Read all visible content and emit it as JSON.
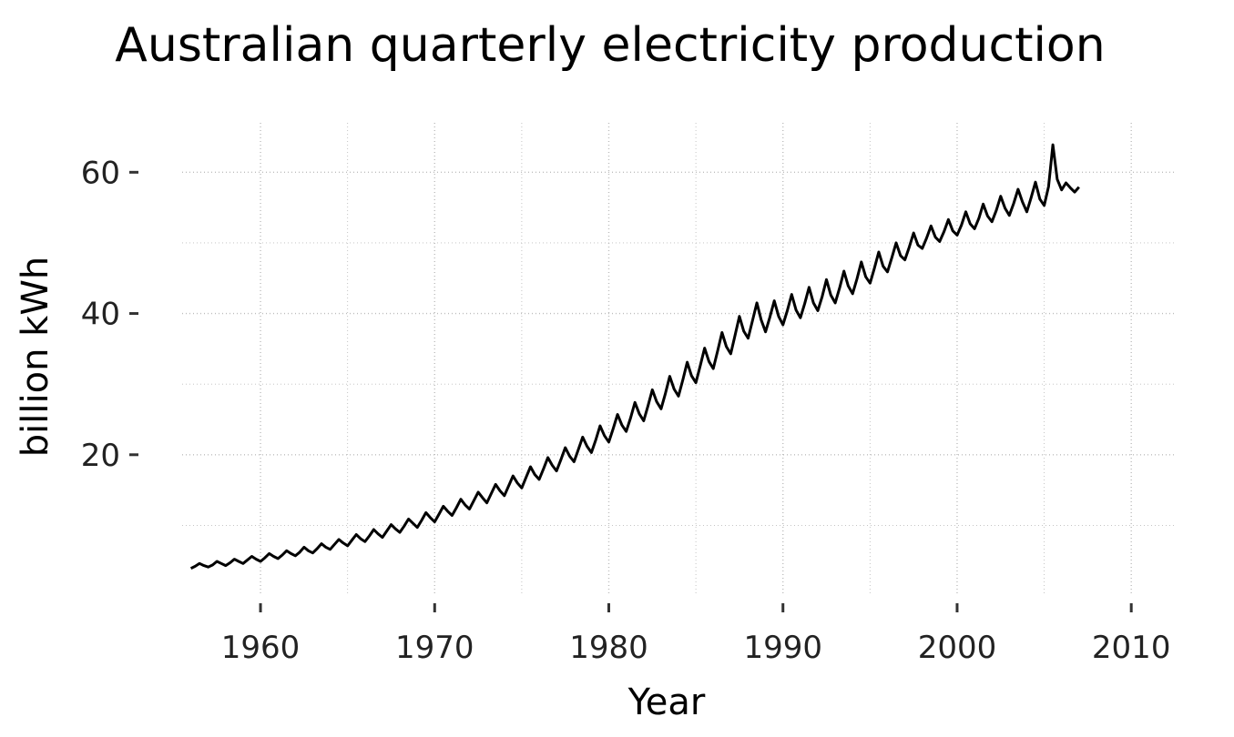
{
  "chart_data": {
    "type": "line",
    "title": "Australian quarterly electricity production",
    "xlabel": "Year",
    "ylabel": "billion kWh",
    "xlim": [
      1955.5,
      2012.5
    ],
    "ylim": [
      0,
      67
    ],
    "x_ticks": [
      1960,
      1970,
      1980,
      1990,
      2000,
      2010
    ],
    "x_tick_labels": [
      "1960",
      "1970",
      "1980",
      "1990",
      "2000",
      "2010"
    ],
    "y_ticks": [
      20,
      40,
      60
    ],
    "y_tick_labels": [
      "20",
      "40",
      "60"
    ],
    "grid": true,
    "legend": "none",
    "x_start": 1956.0,
    "x_step": 0.25,
    "series": [
      {
        "values": [
          3.9,
          4.2,
          4.6,
          4.3,
          4.1,
          4.4,
          4.9,
          4.6,
          4.3,
          4.7,
          5.2,
          4.9,
          4.6,
          5.1,
          5.6,
          5.2,
          4.9,
          5.4,
          6.0,
          5.6,
          5.3,
          5.8,
          6.4,
          6.0,
          5.7,
          6.2,
          6.9,
          6.4,
          6.1,
          6.7,
          7.4,
          6.9,
          6.6,
          7.3,
          8.0,
          7.5,
          7.1,
          7.9,
          8.7,
          8.1,
          7.7,
          8.5,
          9.4,
          8.8,
          8.3,
          9.2,
          10.1,
          9.5,
          9.0,
          9.9,
          10.9,
          10.3,
          9.7,
          10.7,
          11.8,
          11.1,
          10.5,
          11.6,
          12.7,
          12.0,
          11.4,
          12.5,
          13.7,
          12.9,
          12.3,
          13.5,
          14.7,
          13.9,
          13.2,
          14.5,
          15.8,
          14.9,
          14.2,
          15.6,
          17.0,
          16.0,
          15.3,
          16.8,
          18.3,
          17.2,
          16.5,
          18.0,
          19.6,
          18.5,
          17.7,
          19.3,
          21.0,
          19.8,
          19.0,
          20.7,
          22.5,
          21.2,
          20.3,
          22.1,
          24.1,
          22.7,
          21.8,
          23.7,
          25.7,
          24.2,
          23.3,
          25.2,
          27.4,
          25.8,
          24.8,
          26.9,
          29.2,
          27.5,
          26.5,
          28.7,
          31.1,
          29.3,
          28.3,
          30.6,
          33.1,
          31.2,
          30.2,
          32.6,
          35.1,
          33.2,
          32.2,
          34.7,
          37.3,
          35.3,
          34.3,
          36.9,
          39.6,
          37.5,
          36.5,
          39.0,
          41.5,
          39.1,
          37.4,
          39.5,
          41.8,
          39.6,
          38.4,
          40.4,
          42.7,
          40.5,
          39.4,
          41.4,
          43.7,
          41.5,
          40.4,
          42.4,
          44.8,
          42.6,
          41.5,
          43.6,
          46.0,
          43.9,
          42.8,
          44.9,
          47.3,
          45.2,
          44.3,
          46.4,
          48.7,
          46.7,
          45.9,
          47.9,
          50.0,
          48.2,
          47.6,
          49.4,
          51.4,
          49.7,
          49.2,
          50.7,
          52.4,
          50.8,
          50.2,
          51.6,
          53.3,
          51.7,
          51.1,
          52.5,
          54.4,
          52.7,
          52.0,
          53.5,
          55.5,
          53.8,
          53.0,
          54.6,
          56.6,
          54.9,
          53.9,
          55.6,
          57.6,
          55.8,
          54.4,
          56.4,
          58.6,
          56.2,
          55.3,
          58.0,
          63.9,
          59.0,
          57.5,
          58.5,
          57.8,
          57.2,
          57.9
        ]
      }
    ]
  }
}
